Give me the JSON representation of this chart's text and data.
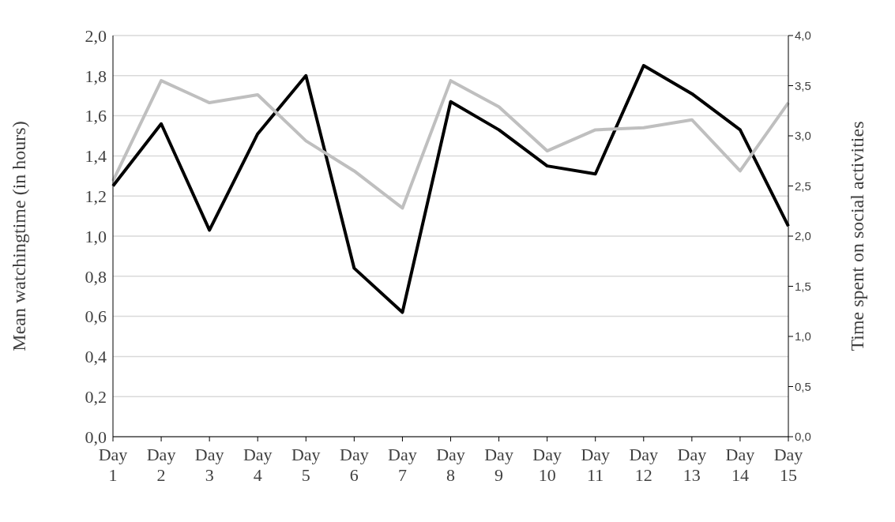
{
  "chart_data": {
    "type": "line",
    "ylabel": "Mean watchingtime (in hours)",
    "y2label": "Time spent on social activities",
    "categories": [
      "Day 1",
      "Day 2",
      "Day 3",
      "Day 4",
      "Day 5",
      "Day 6",
      "Day 7",
      "Day 8",
      "Day 9",
      "Day 10",
      "Day 11",
      "Day 12",
      "Day 13",
      "Day 14",
      "Day 15"
    ],
    "series": [
      {
        "color": "#000000",
        "values": [
          1.25,
          1.56,
          1.03,
          1.51,
          1.8,
          0.84,
          0.62,
          1.67,
          1.53,
          1.35,
          1.31,
          1.85,
          1.71,
          1.53,
          1.05
        ]
      },
      {
        "color": "#bfbfbf",
        "axis": "y2",
        "values": [
          2.55,
          3.55,
          3.33,
          3.41,
          2.95,
          2.65,
          2.28,
          3.55,
          3.29,
          2.85,
          3.06,
          3.08,
          3.16,
          2.65,
          3.33
        ]
      }
    ],
    "ylim": [
      0,
      2
    ],
    "yticks": [
      {
        "value": 0,
        "label": "0,0"
      },
      {
        "value": 0.2,
        "label": "0,2"
      },
      {
        "value": 0.4,
        "label": "0,4"
      },
      {
        "value": 0.6,
        "label": "0,6"
      },
      {
        "value": 0.8,
        "label": "0,8"
      },
      {
        "value": 1,
        "label": "1,0"
      },
      {
        "value": 1.2,
        "label": "1,2"
      },
      {
        "value": 1.4,
        "label": "1,4"
      },
      {
        "value": 1.6,
        "label": "1,6"
      },
      {
        "value": 1.8,
        "label": "1,8"
      },
      {
        "value": 2,
        "label": "2,0"
      }
    ],
    "y2lim": [
      0,
      4
    ],
    "y2ticks": [
      {
        "value": 0,
        "label": "0,0"
      },
      {
        "value": 0.5,
        "label": "0,5"
      },
      {
        "value": 1,
        "label": "1,0"
      },
      {
        "value": 1.5,
        "label": "1,5"
      },
      {
        "value": 2,
        "label": "2,0"
      },
      {
        "value": 2.5,
        "label": "2,5"
      },
      {
        "value": 3,
        "label": "3,0"
      },
      {
        "value": 3.5,
        "label": "3,5"
      },
      {
        "value": 4,
        "label": "4,0"
      }
    ],
    "grid": "y",
    "marker": "none",
    "line_style": "solid"
  }
}
